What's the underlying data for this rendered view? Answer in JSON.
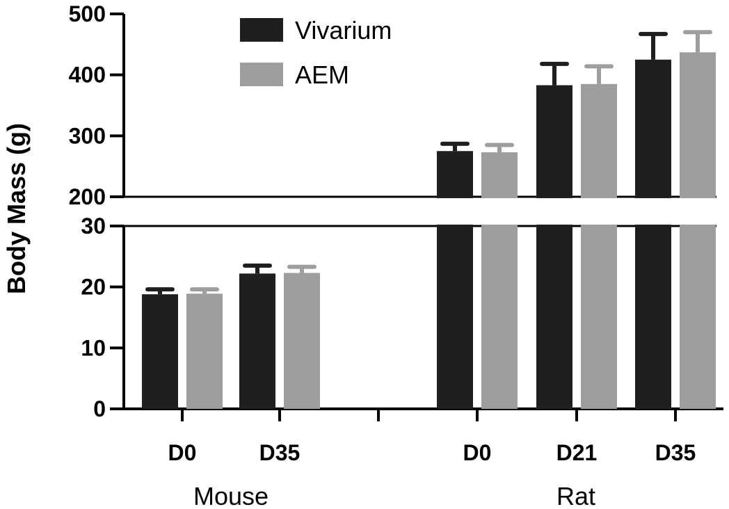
{
  "chart_data": {
    "type": "bar",
    "ylabel": "Body  Mass  (g)",
    "y_axis": {
      "broken": true,
      "lower_segment": {
        "range": [
          0,
          30
        ],
        "ticks": [
          "0",
          "10",
          "20",
          "30"
        ]
      },
      "upper_segment": {
        "range": [
          200,
          500
        ],
        "ticks": [
          "200",
          "300",
          "400",
          "500"
        ]
      }
    },
    "groups": [
      {
        "name": "Mouse",
        "categories": [
          "D0",
          "D35"
        ]
      },
      {
        "name": "Rat",
        "categories": [
          "D0",
          "D21",
          "D35"
        ]
      }
    ],
    "series": [
      {
        "name": "Vivarium",
        "color": "#1f1f1f",
        "values": [
          18.8,
          22.2,
          275,
          383,
          425
        ],
        "errors": [
          0.8,
          1.3,
          12,
          35,
          42
        ]
      },
      {
        "name": "AEM",
        "color": "#9e9e9e",
        "values": [
          18.9,
          22.3,
          273,
          385,
          437
        ],
        "errors": [
          0.7,
          1.0,
          12,
          29,
          33
        ]
      }
    ],
    "legend": {
      "position": "top-center"
    },
    "grid": false
  }
}
